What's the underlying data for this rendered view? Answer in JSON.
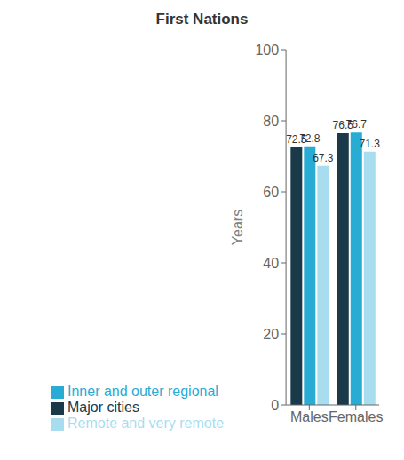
{
  "chart_data": {
    "type": "bar",
    "title": "First Nations",
    "ylabel": "Years",
    "categories": [
      "Males",
      "Females"
    ],
    "series": [
      {
        "name": "Major cities",
        "color": "#1a3a4a",
        "values": [
          72.5,
          76.5
        ]
      },
      {
        "name": "Inner and outer regional",
        "color": "#29acd4",
        "values": [
          72.8,
          76.7
        ]
      },
      {
        "name": "Remote and very remote",
        "color": "#a8ddf0",
        "values": [
          67.3,
          71.3
        ]
      }
    ],
    "ylim": [
      0,
      100
    ],
    "yticks": [
      0,
      20,
      40,
      60,
      80,
      100
    ],
    "grid": false,
    "legend": "bottom",
    "data_labels": true
  }
}
